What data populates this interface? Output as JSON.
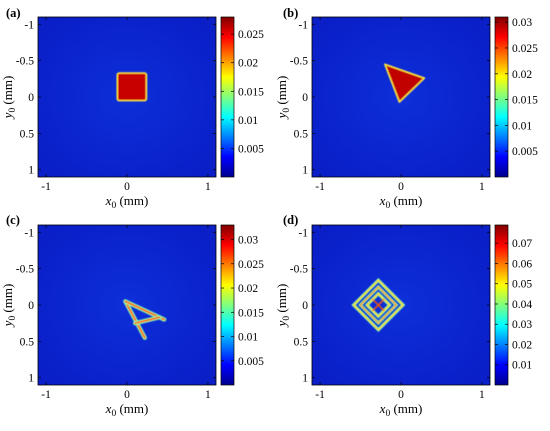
{
  "chart_data": [
    {
      "type": "heatmap",
      "panel_label": "(a)",
      "xlabel": "x",
      "xlabel_sub": "0",
      "xlabel_unit": " (mm)",
      "ylabel": "y",
      "ylabel_sub": "0",
      "ylabel_unit": " (mm)",
      "xlim": [
        -1.1,
        1.1
      ],
      "ylim": [
        -1.1,
        1.1
      ],
      "y_reversed": true,
      "x_ticks": [
        -1,
        0,
        1
      ],
      "x_tick_labels": [
        "-1",
        "0",
        "1"
      ],
      "y_ticks": [
        -1,
        -0.5,
        0,
        0.5,
        1
      ],
      "y_tick_labels": [
        "-1",
        "-0.5",
        "0",
        "0.5",
        "1"
      ],
      "colorbar": {
        "range": [
          0,
          0.028
        ],
        "ticks": [
          0.005,
          0.01,
          0.015,
          0.02,
          0.025
        ],
        "tick_labels": [
          "0.005",
          "0.01",
          "0.015",
          "0.02",
          "0.025"
        ]
      },
      "colormap": "jet",
      "object": {
        "shape": "square",
        "x": [
          -0.12,
          0.24
        ],
        "y": [
          -0.33,
          0.05
        ],
        "value": 0.026
      }
    },
    {
      "type": "heatmap",
      "panel_label": "(b)",
      "xlabel": "x",
      "xlabel_sub": "0",
      "xlabel_unit": " (mm)",
      "ylabel": "y",
      "ylabel_sub": "0",
      "ylabel_unit": " (mm)",
      "xlim": [
        -1.1,
        1.1
      ],
      "ylim": [
        -1.1,
        1.1
      ],
      "y_reversed": true,
      "x_ticks": [
        -1,
        0,
        1
      ],
      "x_tick_labels": [
        "-1",
        "0",
        "1"
      ],
      "y_ticks": [
        -1,
        -0.5,
        0,
        0.5,
        1
      ],
      "y_tick_labels": [
        "-1",
        "-0.5",
        "0",
        "0.5",
        "1"
      ],
      "colorbar": {
        "range": [
          0,
          0.031
        ],
        "ticks": [
          0.005,
          0.01,
          0.015,
          0.02,
          0.025,
          0.03
        ],
        "tick_labels": [
          "0.005",
          "0.01",
          "0.015",
          "0.02",
          "0.025",
          "0.03"
        ]
      },
      "colormap": "jet",
      "object": {
        "shape": "triangle",
        "vertices": [
          [
            -0.2,
            -0.45
          ],
          [
            0.29,
            -0.26
          ],
          [
            -0.02,
            0.07
          ]
        ],
        "value": 0.029
      }
    },
    {
      "type": "heatmap",
      "panel_label": "(c)",
      "xlabel": "x",
      "xlabel_sub": "0",
      "xlabel_unit": " (mm)",
      "ylabel": "y",
      "ylabel_sub": "0",
      "ylabel_unit": " (mm)",
      "xlim": [
        -1.1,
        1.1
      ],
      "ylim": [
        -1.1,
        1.1
      ],
      "y_reversed": true,
      "x_ticks": [
        -1,
        0,
        1
      ],
      "x_tick_labels": [
        "-1",
        "0",
        "1"
      ],
      "y_ticks": [
        -1,
        -0.5,
        0,
        0.5,
        1
      ],
      "y_tick_labels": [
        "-1",
        "-0.5",
        "0",
        "0.5",
        "1"
      ],
      "colorbar": {
        "range": [
          0,
          0.033
        ],
        "ticks": [
          0.005,
          0.01,
          0.015,
          0.02,
          0.025,
          0.03
        ],
        "tick_labels": [
          "0.005",
          "0.01",
          "0.015",
          "0.02",
          "0.025",
          "0.03"
        ]
      },
      "colormap": "jet",
      "object": {
        "shape": "letter-A",
        "strokes": [
          [
            [
              -0.02,
              -0.05
            ],
            [
              0.22,
              0.45
            ]
          ],
          [
            [
              -0.02,
              -0.05
            ],
            [
              0.46,
              0.2
            ]
          ],
          [
            [
              0.1,
              0.25
            ],
            [
              0.4,
              0.17
            ]
          ]
        ],
        "value": 0.025
      }
    },
    {
      "type": "heatmap",
      "panel_label": "(d)",
      "xlabel": "x",
      "xlabel_sub": "0",
      "xlabel_unit": " (mm)",
      "ylabel": "y",
      "ylabel_sub": "0",
      "ylabel_unit": " (mm)",
      "xlim": [
        -1.1,
        1.1
      ],
      "ylim": [
        -1.1,
        1.1
      ],
      "y_reversed": true,
      "x_ticks": [
        -1,
        0,
        1
      ],
      "x_tick_labels": [
        "-1",
        "0",
        "1"
      ],
      "y_ticks": [
        -1,
        -0.5,
        0,
        0.5,
        1
      ],
      "y_tick_labels": [
        "-1",
        "-0.5",
        "0",
        "0.5",
        "1"
      ],
      "colorbar": {
        "range": [
          0,
          0.079
        ],
        "ticks": [
          0.01,
          0.02,
          0.03,
          0.04,
          0.05,
          0.06,
          0.07
        ],
        "tick_labels": [
          "0.01",
          "0.02",
          "0.03",
          "0.04",
          "0.05",
          "0.06",
          "0.07"
        ]
      },
      "colormap": "jet",
      "object": {
        "shape": "diamond-pattern",
        "center": [
          -0.28,
          0.0
        ],
        "half_diagonal": 0.32,
        "value": 0.06
      }
    }
  ]
}
